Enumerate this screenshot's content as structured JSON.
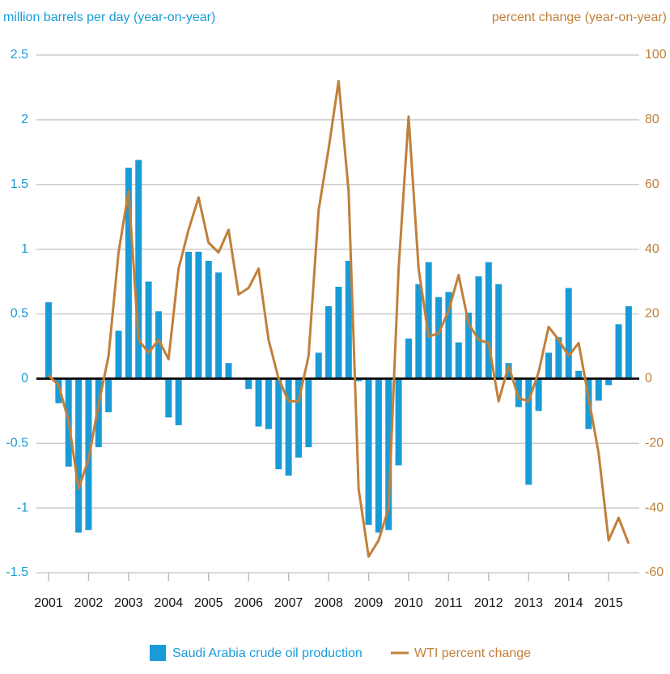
{
  "chart_data": {
    "type": "bar-line",
    "y_label": "million barrels per day (year-on-year)",
    "y2_label": "percent change (year-on-year)",
    "categories": [
      "2001",
      null,
      null,
      null,
      "2002",
      null,
      null,
      null,
      "2003",
      null,
      null,
      null,
      "2004",
      null,
      null,
      null,
      "2005",
      null,
      null,
      null,
      "2006",
      null,
      null,
      null,
      "2007",
      null,
      null,
      null,
      "2008",
      null,
      null,
      null,
      "2009",
      null,
      null,
      null,
      "2010",
      null,
      null,
      null,
      "2011",
      null,
      null,
      null,
      "2012",
      null,
      null,
      null,
      "2013",
      null,
      null,
      null,
      "2014",
      null,
      null,
      null,
      "2015",
      null,
      null
    ],
    "series": [
      {
        "name": "Saudi Arabia crude oil production",
        "type": "bar",
        "color": "#1a9bd7",
        "values": [
          0.59,
          -0.19,
          -0.68,
          -1.19,
          -1.17,
          -0.53,
          -0.26,
          0.37,
          1.63,
          1.69,
          0.75,
          0.52,
          -0.3,
          -0.36,
          0.98,
          0.98,
          0.91,
          0.82,
          0.12,
          0,
          -0.08,
          -0.37,
          -0.39,
          -0.7,
          -0.75,
          -0.61,
          -0.53,
          0.2,
          0.56,
          0.71,
          0.91,
          -0.02,
          -1.13,
          -1.19,
          -1.17,
          -0.67,
          0.31,
          0.73,
          0.9,
          0.63,
          0.67,
          0.28,
          0.51,
          0.79,
          0.9,
          0.73,
          0.12,
          -0.22,
          -0.82,
          -0.25,
          0.2,
          0.32,
          0.7,
          0.06,
          -0.39,
          -0.17,
          -0.05,
          0.42,
          0.56
        ]
      },
      {
        "name": "WTI percent change",
        "type": "line",
        "axis": "y2",
        "color": "#c0803a",
        "values": [
          1,
          -2,
          -13,
          -34,
          -25,
          -8,
          7,
          39,
          58,
          12,
          8,
          12,
          6,
          34,
          46,
          56,
          42,
          39,
          46,
          26,
          28,
          34,
          12,
          0,
          -7,
          -7,
          7,
          52,
          71,
          92,
          58,
          -34,
          -55,
          -50,
          -40,
          34,
          81,
          34,
          13,
          14,
          21,
          32,
          17,
          12,
          11,
          -7,
          4,
          -6,
          -7,
          2,
          16,
          12,
          7,
          11,
          -6,
          -23,
          -50,
          -43,
          -51
        ]
      }
    ],
    "ylim": [
      -1.5,
      2.5
    ],
    "yticks": [
      2.5,
      2,
      1.5,
      1,
      0.5,
      0,
      -0.5,
      -1,
      -1.5
    ],
    "y2lim": [
      -60,
      100
    ],
    "y2ticks": [
      100,
      80,
      60,
      40,
      20,
      0,
      -20,
      -40,
      -60
    ],
    "grid": true,
    "legend": "bottom"
  }
}
